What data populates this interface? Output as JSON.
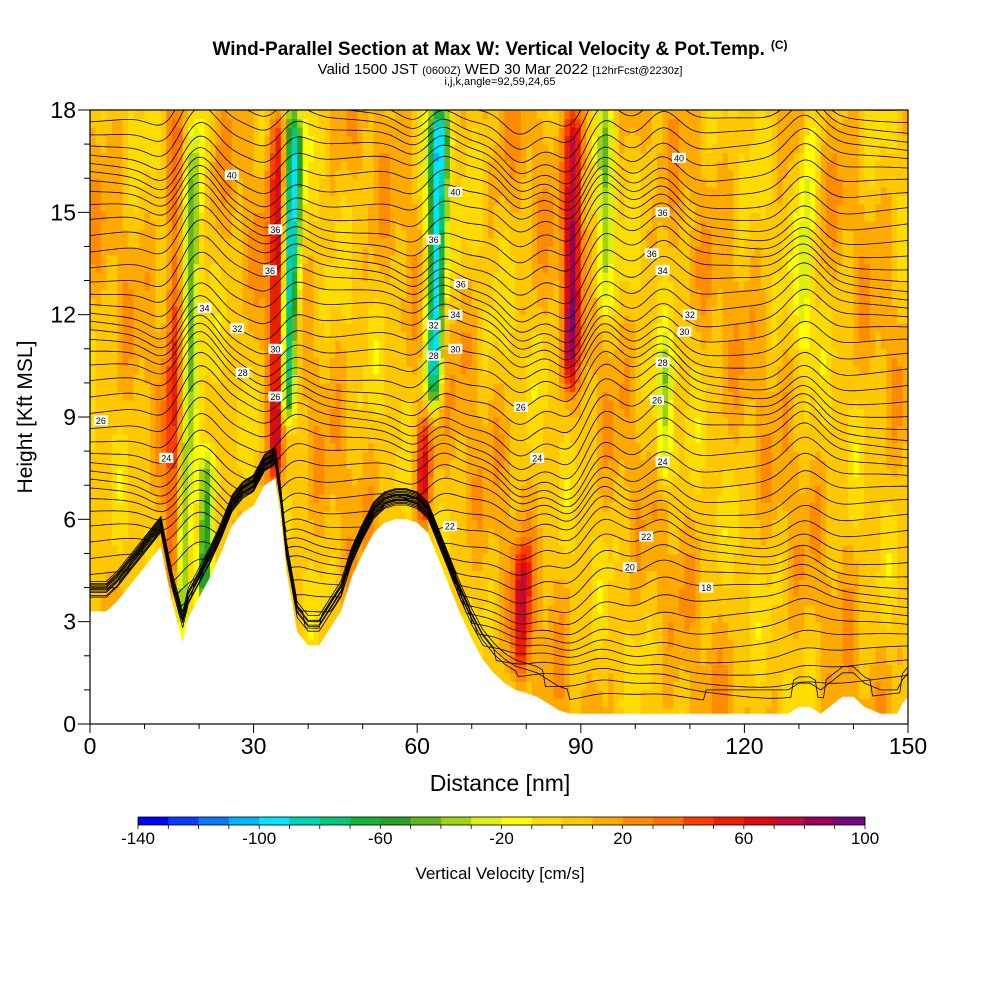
{
  "header": {
    "title": "Wind-Parallel Section at Max W: Vertical Velocity & Pot.Temp.",
    "title_mark": "(C)",
    "subtitle_valid": "Valid 1500 JST",
    "subtitle_utc": "(0600Z)",
    "subtitle_date": "WED 30 Mar 2022",
    "subtitle_fcst": "[12hrFcst@2230z]",
    "subtitle2": "i,j,k,angle=92,59,24,65"
  },
  "chart_data": {
    "type": "heatmap",
    "description_fields": "filled contours of vertical velocity with potential temperature isolines",
    "xlabel": "Distance [nm]",
    "ylabel": "Height [Kft MSL]",
    "xlim": [
      0,
      150
    ],
    "ylim": [
      0,
      18
    ],
    "x_ticks": [
      0,
      30,
      60,
      90,
      120,
      150
    ],
    "y_ticks": [
      0,
      3,
      6,
      9,
      12,
      15,
      18
    ],
    "colorbar": {
      "label": "Vertical Velocity [cm/s]",
      "min": -140,
      "max": 100,
      "step": 10,
      "tick_labels": [
        "-140",
        "-100",
        "-60",
        "-20",
        "20",
        "60",
        "100"
      ],
      "colors": [
        "#0000ff",
        "#0a3cff",
        "#0a78ff",
        "#00b4ff",
        "#00e6ff",
        "#00d2b4",
        "#00c878",
        "#14b43c",
        "#28a028",
        "#64b41e",
        "#a0d214",
        "#dcf014",
        "#ffff00",
        "#ffdc00",
        "#ffc800",
        "#ffaa00",
        "#ff8c00",
        "#ff6e00",
        "#ff3c00",
        "#ee1e00",
        "#dc0a14",
        "#be0a3c",
        "#96005a",
        "#6e0a7d"
      ]
    },
    "terrain": [
      [
        0,
        3.3
      ],
      [
        3,
        3.3
      ],
      [
        5,
        3.6
      ],
      [
        8,
        4.2
      ],
      [
        10,
        4.6
      ],
      [
        12,
        5.0
      ],
      [
        13,
        5.2
      ],
      [
        14,
        4.4
      ],
      [
        15,
        3.6
      ],
      [
        16,
        3.0
      ],
      [
        17,
        2.4
      ],
      [
        18,
        3.1
      ],
      [
        20,
        3.7
      ],
      [
        22,
        4.3
      ],
      [
        24,
        5.0
      ],
      [
        26,
        5.8
      ],
      [
        28,
        6.2
      ],
      [
        30,
        6.4
      ],
      [
        32,
        7.0
      ],
      [
        34,
        7.2
      ],
      [
        35,
        6.0
      ],
      [
        36,
        4.5
      ],
      [
        37,
        3.6
      ],
      [
        38,
        2.7
      ],
      [
        40,
        2.3
      ],
      [
        42,
        2.3
      ],
      [
        44,
        2.8
      ],
      [
        46,
        3.3
      ],
      [
        48,
        4.3
      ],
      [
        50,
        5.0
      ],
      [
        52,
        5.6
      ],
      [
        54,
        5.9
      ],
      [
        56,
        6.0
      ],
      [
        58,
        6.0
      ],
      [
        60,
        5.9
      ],
      [
        62,
        5.6
      ],
      [
        64,
        4.8
      ],
      [
        66,
        4.0
      ],
      [
        68,
        3.2
      ],
      [
        70,
        2.5
      ],
      [
        72,
        1.9
      ],
      [
        74,
        1.5
      ],
      [
        76,
        1.2
      ],
      [
        78,
        1.0
      ],
      [
        80,
        0.9
      ],
      [
        82,
        0.8
      ],
      [
        84,
        0.6
      ],
      [
        86,
        0.4
      ],
      [
        88,
        0.3
      ],
      [
        90,
        0.3
      ],
      [
        100,
        0.3
      ],
      [
        110,
        0.3
      ],
      [
        120,
        0.3
      ],
      [
        128,
        0.3
      ],
      [
        130,
        0.5
      ],
      [
        132,
        0.5
      ],
      [
        134,
        0.3
      ],
      [
        138,
        0.8
      ],
      [
        140,
        0.8
      ],
      [
        142,
        0.5
      ],
      [
        145,
        0.3
      ],
      [
        148,
        0.3
      ],
      [
        149,
        0.6
      ],
      [
        150,
        0.8
      ]
    ],
    "w_features": [
      {
        "x": 15,
        "z0": 4,
        "z1": 18,
        "w": 45
      },
      {
        "x": 17,
        "z0": 3,
        "z1": 18,
        "w": -55
      },
      {
        "x": 21,
        "z0": 3.5,
        "z1": 8,
        "w": -75
      },
      {
        "x": 34,
        "z0": 7,
        "z1": 18,
        "w": 75
      },
      {
        "x": 36,
        "z0": 9,
        "z1": 18,
        "w": -120
      },
      {
        "x": 61,
        "z0": 6,
        "z1": 9,
        "w": 60
      },
      {
        "x": 63,
        "z0": 9.5,
        "z1": 18,
        "w": -110
      },
      {
        "x": 79,
        "z0": 1.5,
        "z1": 5,
        "w": 60
      },
      {
        "x": 88,
        "z0": 10,
        "z1": 18,
        "w": 70
      },
      {
        "x": 94,
        "z0": 12,
        "z1": 18,
        "w": -40
      },
      {
        "x": 105,
        "z0": 7,
        "z1": 11,
        "w": -40
      },
      {
        "x": 131,
        "z0": 11,
        "z1": 18,
        "w": -30
      }
    ],
    "theta_contour_labels": [
      {
        "value": "40",
        "x": 26,
        "z": 16.1
      },
      {
        "value": "40",
        "x": 67,
        "z": 15.6
      },
      {
        "value": "40",
        "x": 108,
        "z": 16.6
      },
      {
        "value": "36",
        "x": 34,
        "z": 14.5
      },
      {
        "value": "36",
        "x": 63,
        "z": 14.2
      },
      {
        "value": "36",
        "x": 105,
        "z": 15.0
      },
      {
        "value": "36",
        "x": 33,
        "z": 13.3
      },
      {
        "value": "36",
        "x": 68,
        "z": 12.9
      },
      {
        "value": "36",
        "x": 103,
        "z": 13.8
      },
      {
        "value": "34",
        "x": 21,
        "z": 12.2
      },
      {
        "value": "34",
        "x": 67,
        "z": 12.0
      },
      {
        "value": "34",
        "x": 105,
        "z": 13.3
      },
      {
        "value": "32",
        "x": 27,
        "z": 11.6
      },
      {
        "value": "32",
        "x": 63,
        "z": 11.7
      },
      {
        "value": "32",
        "x": 110,
        "z": 12.0
      },
      {
        "value": "30",
        "x": 34,
        "z": 11.0
      },
      {
        "value": "30",
        "x": 67,
        "z": 11.0
      },
      {
        "value": "30",
        "x": 109,
        "z": 11.5
      },
      {
        "value": "28",
        "x": 63,
        "z": 10.8
      },
      {
        "value": "28",
        "x": 28,
        "z": 10.3
      },
      {
        "value": "28",
        "x": 105,
        "z": 10.6
      },
      {
        "value": "26",
        "x": 2,
        "z": 8.9
      },
      {
        "value": "26",
        "x": 34,
        "z": 9.6
      },
      {
        "value": "26",
        "x": 79,
        "z": 9.3
      },
      {
        "value": "26",
        "x": 104,
        "z": 9.5
      },
      {
        "value": "24",
        "x": 14,
        "z": 7.8
      },
      {
        "value": "24",
        "x": 82,
        "z": 7.8
      },
      {
        "value": "24",
        "x": 105,
        "z": 7.7
      },
      {
        "value": "22",
        "x": 66,
        "z": 5.8
      },
      {
        "value": "22",
        "x": 102,
        "z": 5.5
      },
      {
        "value": "20",
        "x": 99,
        "z": 4.6
      },
      {
        "value": "18",
        "x": 113,
        "z": 4.0
      }
    ]
  }
}
